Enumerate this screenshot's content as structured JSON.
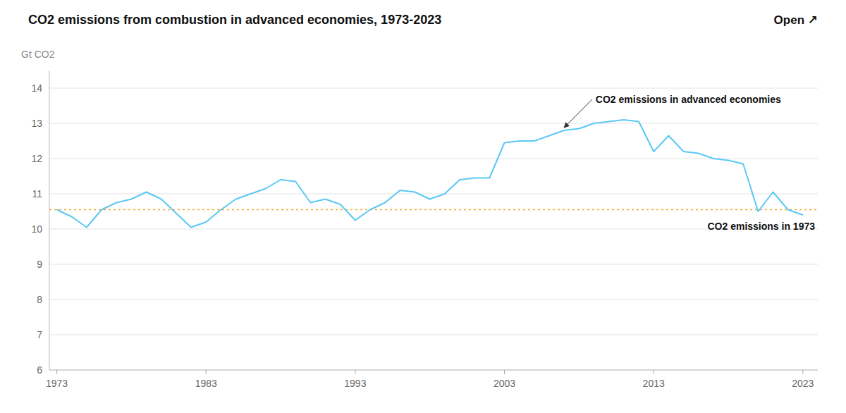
{
  "chart_data": {
    "type": "line",
    "title": "CO2 emissions from combustion in advanced economies, 1973-2023",
    "y_label": "Gt CO2",
    "annotations": [
      "Open ↗"
    ],
    "x": [
      1973,
      1974,
      1975,
      1976,
      1977,
      1978,
      1979,
      1980,
      1981,
      1982,
      1983,
      1984,
      1985,
      1986,
      1987,
      1988,
      1989,
      1990,
      1991,
      1992,
      1993,
      1994,
      1995,
      1996,
      1997,
      1998,
      1999,
      2000,
      2001,
      2002,
      2003,
      2004,
      2005,
      2006,
      2007,
      2008,
      2009,
      2010,
      2011,
      2012,
      2013,
      2014,
      2015,
      2016,
      2017,
      2018,
      2019,
      2020,
      2021,
      2022,
      2023
    ],
    "series": [
      {
        "name": "CO2 emissions in advanced economies",
        "color": "#5bc8f5",
        "values": [
          10.55,
          10.35,
          10.05,
          10.55,
          10.75,
          10.85,
          11.05,
          10.85,
          10.45,
          10.05,
          10.2,
          10.55,
          10.85,
          11.0,
          11.15,
          11.4,
          11.35,
          10.75,
          10.85,
          10.7,
          10.25,
          10.55,
          10.75,
          11.1,
          11.05,
          10.85,
          11.0,
          11.4,
          11.45,
          11.45,
          12.45,
          12.5,
          12.5,
          12.65,
          12.8,
          12.85,
          13.0,
          13.05,
          13.1,
          13.05,
          12.2,
          12.65,
          12.2,
          12.15,
          12.0,
          11.95,
          11.85,
          10.5,
          11.05,
          10.55,
          10.4
        ]
      }
    ],
    "reference": {
      "value": 10.55,
      "label": "CO2 emissions in 1973",
      "color": "#f5a623"
    },
    "xlim": [
      1972.5,
      2024
    ],
    "xticks": [
      1973,
      1983,
      1993,
      2003,
      2013,
      2023
    ],
    "ylim": [
      6,
      14.5
    ],
    "yticks": [
      6,
      7,
      8,
      9,
      10,
      11,
      12,
      13,
      14
    ],
    "grid": true
  }
}
